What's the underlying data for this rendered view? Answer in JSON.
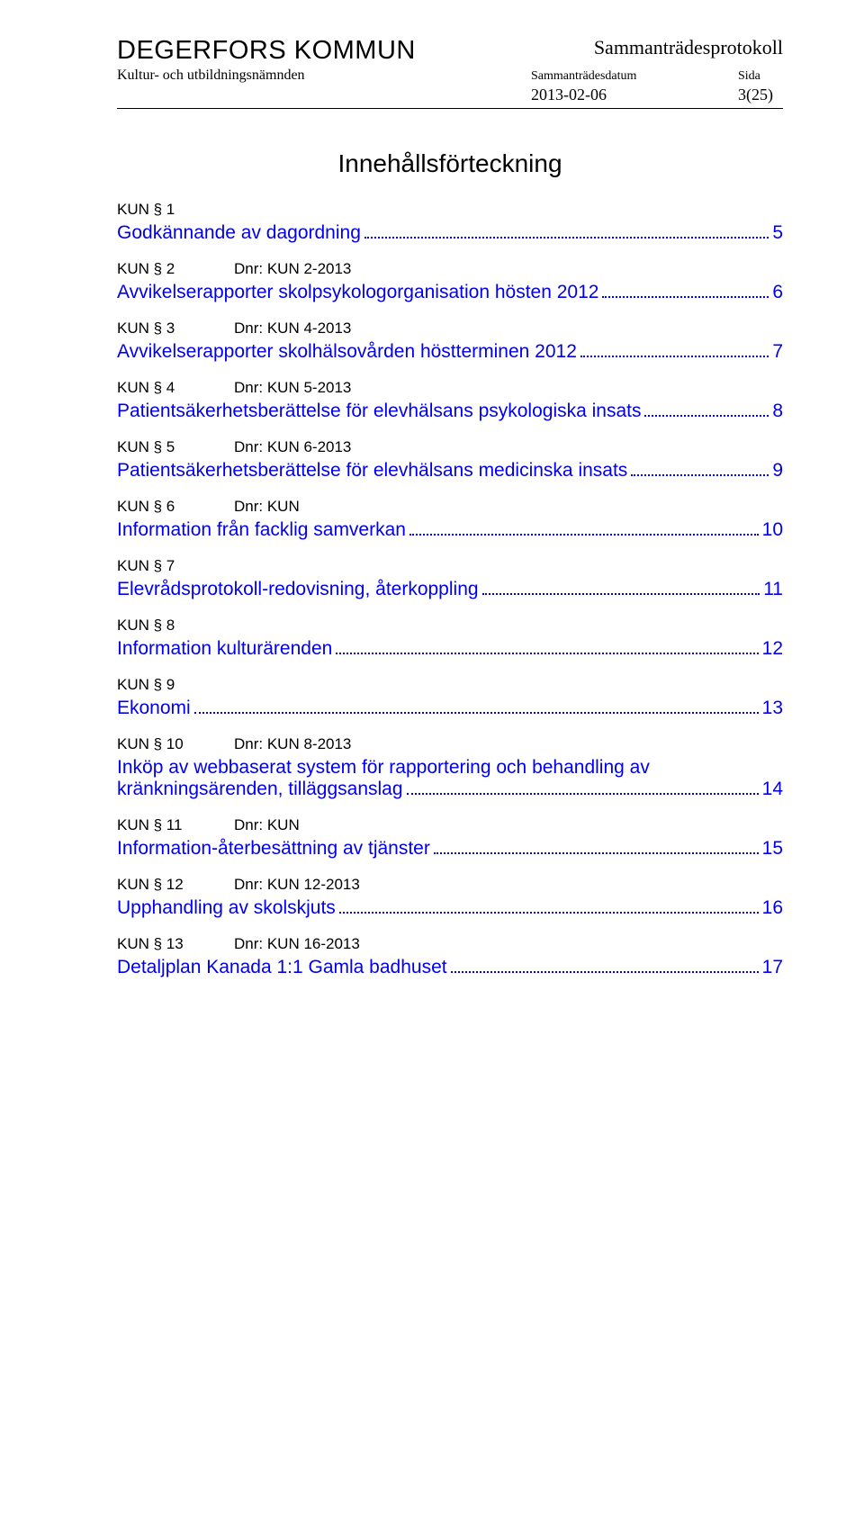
{
  "header": {
    "org_name": "DEGERFORS KOMMUN",
    "protokoll": "Sammanträdesprotokoll",
    "committee": "Kultur- och utbildningsnämnden",
    "label_sammantradesdatum": "Sammanträdesdatum",
    "label_sida": "Sida",
    "date": "2013-02-06",
    "page_num": "3(25)"
  },
  "toc_title": "Innehållsförteckning",
  "toc": [
    {
      "kun": "KUN § 1",
      "dnr": "",
      "title": "Godkännande av dagordning",
      "page": "5"
    },
    {
      "kun": "KUN § 2",
      "dnr": "Dnr: KUN 2-2013",
      "title": "Avvikelserapporter skolpsykologorganisation hösten 2012",
      "page": "6"
    },
    {
      "kun": "KUN § 3",
      "dnr": "Dnr: KUN 4-2013",
      "title": "Avvikelserapporter skolhälsovården höstterminen 2012",
      "page": "7"
    },
    {
      "kun": "KUN § 4",
      "dnr": "Dnr: KUN 5-2013",
      "title": "Patientsäkerhetsberättelse för elevhälsans psykologiska insats",
      "page": "8"
    },
    {
      "kun": "KUN § 5",
      "dnr": "Dnr: KUN 6-2013",
      "title": "Patientsäkerhetsberättelse för elevhälsans medicinska insats",
      "page": "9"
    },
    {
      "kun": "KUN § 6",
      "dnr": "Dnr: KUN",
      "title": "Information från facklig samverkan",
      "page": "10"
    },
    {
      "kun": "KUN § 7",
      "dnr": "",
      "title": "Elevrådsprotokoll-redovisning, återkoppling",
      "page": "11"
    },
    {
      "kun": "KUN § 8",
      "dnr": "",
      "title": "Information kulturärenden",
      "page": "12"
    },
    {
      "kun": "KUN § 9",
      "dnr": "",
      "title": "Ekonomi",
      "page": "13"
    },
    {
      "kun": "KUN § 10",
      "dnr": "Dnr: KUN 8-2013",
      "title_line1": "Inköp av webbaserat system för rapportering och behandling av",
      "title_line2": "kränkningsärenden, tilläggsanslag",
      "page": "14"
    },
    {
      "kun": "KUN § 11",
      "dnr": "Dnr: KUN",
      "title": "Information-återbesättning av tjänster",
      "page": "15"
    },
    {
      "kun": "KUN § 12",
      "dnr": "Dnr: KUN 12-2013",
      "title": "Upphandling av skolskjuts",
      "page": "16"
    },
    {
      "kun": "KUN § 13",
      "dnr": "Dnr: KUN 16-2013",
      "title": "Detaljplan Kanada 1:1 Gamla badhuset",
      "page": "17"
    }
  ],
  "colors": {
    "link": "#0000ee",
    "text": "#000000",
    "page_bg": "#ffffff",
    "outer_bg": "#828282"
  }
}
